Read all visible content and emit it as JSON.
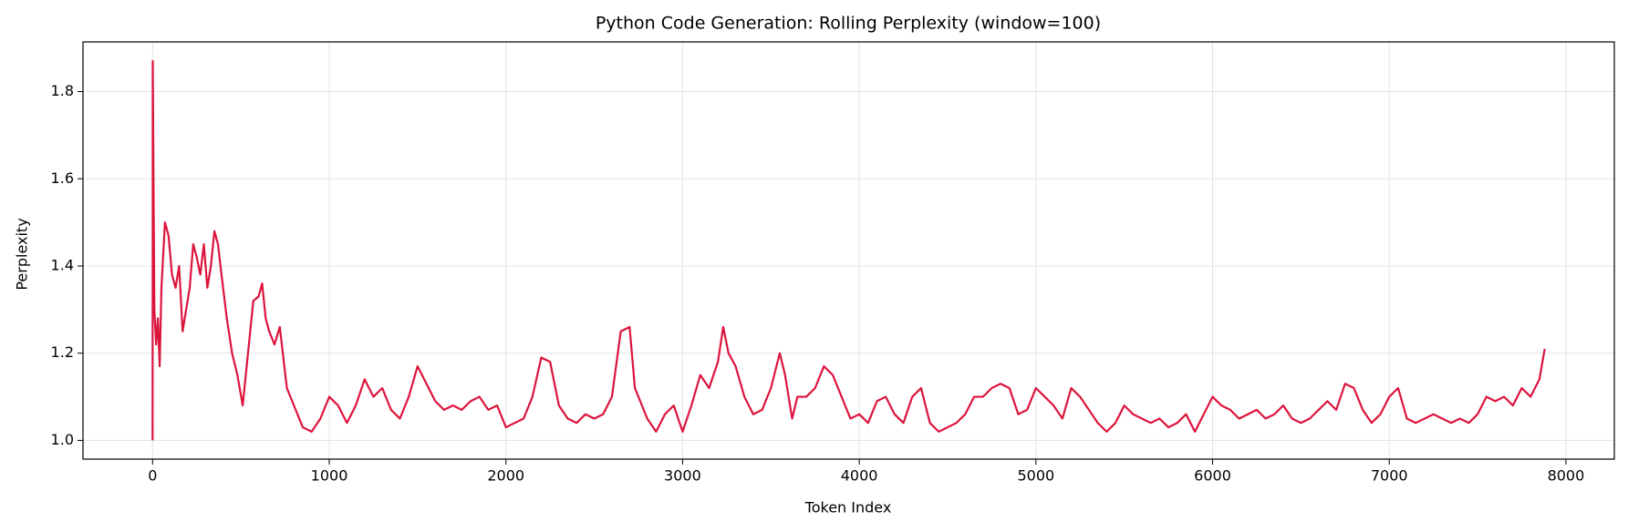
{
  "chart_data": {
    "type": "line",
    "title": "Python Code Generation: Rolling Perplexity (window=100)",
    "xlabel": "Token Index",
    "ylabel": "Perplexity",
    "color": "#dc143c",
    "grid": true,
    "xlim": [
      -394,
      8274
    ],
    "ylim": [
      0.957,
      1.914
    ],
    "xticks": [
      0,
      1000,
      2000,
      3000,
      4000,
      5000,
      6000,
      7000,
      8000
    ],
    "yticks": [
      {
        "value": 1,
        "label": "1.0"
      },
      1.2,
      1.4,
      1.6,
      1.8
    ],
    "x": [
      0,
      1,
      5,
      10,
      20,
      30,
      40,
      50,
      70,
      90,
      110,
      130,
      150,
      170,
      190,
      210,
      230,
      250,
      270,
      290,
      310,
      330,
      350,
      370,
      390,
      420,
      450,
      480,
      510,
      540,
      570,
      600,
      620,
      640,
      660,
      690,
      720,
      760,
      800,
      850,
      900,
      950,
      1000,
      1050,
      1100,
      1150,
      1200,
      1250,
      1300,
      1350,
      1400,
      1450,
      1500,
      1550,
      1600,
      1650,
      1700,
      1750,
      1800,
      1850,
      1900,
      1950,
      2000,
      2050,
      2100,
      2150,
      2200,
      2250,
      2300,
      2350,
      2400,
      2450,
      2500,
      2550,
      2600,
      2650,
      2700,
      2730,
      2800,
      2850,
      2900,
      2950,
      3000,
      3050,
      3100,
      3150,
      3200,
      3230,
      3260,
      3300,
      3350,
      3400,
      3450,
      3500,
      3550,
      3580,
      3620,
      3650,
      3700,
      3750,
      3800,
      3850,
      3900,
      3950,
      4000,
      4050,
      4100,
      4150,
      4200,
      4250,
      4300,
      4350,
      4400,
      4450,
      4500,
      4550,
      4600,
      4650,
      4700,
      4750,
      4800,
      4850,
      4900,
      4950,
      5000,
      5050,
      5100,
      5150,
      5200,
      5250,
      5300,
      5350,
      5400,
      5450,
      5500,
      5550,
      5600,
      5650,
      5700,
      5750,
      5800,
      5850,
      5900,
      5950,
      6000,
      6050,
      6100,
      6150,
      6200,
      6250,
      6300,
      6350,
      6400,
      6450,
      6500,
      6550,
      6600,
      6650,
      6700,
      6750,
      6800,
      6850,
      6900,
      6950,
      7000,
      7050,
      7100,
      7150,
      7200,
      7250,
      7300,
      7350,
      7400,
      7450,
      7500,
      7550,
      7600,
      7650,
      7700,
      7750,
      7800,
      7850,
      7880
    ],
    "values": [
      1.0,
      1.87,
      1.6,
      1.3,
      1.22,
      1.28,
      1.17,
      1.35,
      1.5,
      1.47,
      1.38,
      1.35,
      1.4,
      1.25,
      1.3,
      1.35,
      1.45,
      1.42,
      1.38,
      1.45,
      1.35,
      1.4,
      1.48,
      1.45,
      1.38,
      1.28,
      1.2,
      1.15,
      1.08,
      1.2,
      1.32,
      1.33,
      1.36,
      1.28,
      1.25,
      1.22,
      1.26,
      1.12,
      1.08,
      1.03,
      1.02,
      1.05,
      1.1,
      1.08,
      1.04,
      1.08,
      1.14,
      1.1,
      1.12,
      1.07,
      1.05,
      1.1,
      1.17,
      1.13,
      1.09,
      1.07,
      1.08,
      1.07,
      1.09,
      1.1,
      1.07,
      1.08,
      1.03,
      1.04,
      1.05,
      1.1,
      1.19,
      1.18,
      1.08,
      1.05,
      1.04,
      1.06,
      1.05,
      1.06,
      1.1,
      1.25,
      1.26,
      1.12,
      1.05,
      1.02,
      1.06,
      1.08,
      1.02,
      1.08,
      1.15,
      1.12,
      1.18,
      1.26,
      1.2,
      1.17,
      1.1,
      1.06,
      1.07,
      1.12,
      1.2,
      1.15,
      1.05,
      1.1,
      1.1,
      1.12,
      1.17,
      1.15,
      1.1,
      1.05,
      1.06,
      1.04,
      1.09,
      1.1,
      1.06,
      1.04,
      1.1,
      1.12,
      1.04,
      1.02,
      1.03,
      1.04,
      1.06,
      1.1,
      1.1,
      1.12,
      1.13,
      1.12,
      1.06,
      1.07,
      1.12,
      1.1,
      1.08,
      1.05,
      1.12,
      1.1,
      1.07,
      1.04,
      1.02,
      1.04,
      1.08,
      1.06,
      1.05,
      1.04,
      1.05,
      1.03,
      1.04,
      1.06,
      1.02,
      1.06,
      1.1,
      1.08,
      1.07,
      1.05,
      1.06,
      1.07,
      1.05,
      1.06,
      1.08,
      1.05,
      1.04,
      1.05,
      1.07,
      1.09,
      1.07,
      1.13,
      1.12,
      1.07,
      1.04,
      1.06,
      1.1,
      1.12,
      1.05,
      1.04,
      1.05,
      1.06,
      1.05,
      1.04,
      1.05,
      1.04,
      1.06,
      1.1,
      1.09,
      1.1,
      1.08,
      1.12,
      1.1,
      1.14,
      1.21
    ]
  }
}
